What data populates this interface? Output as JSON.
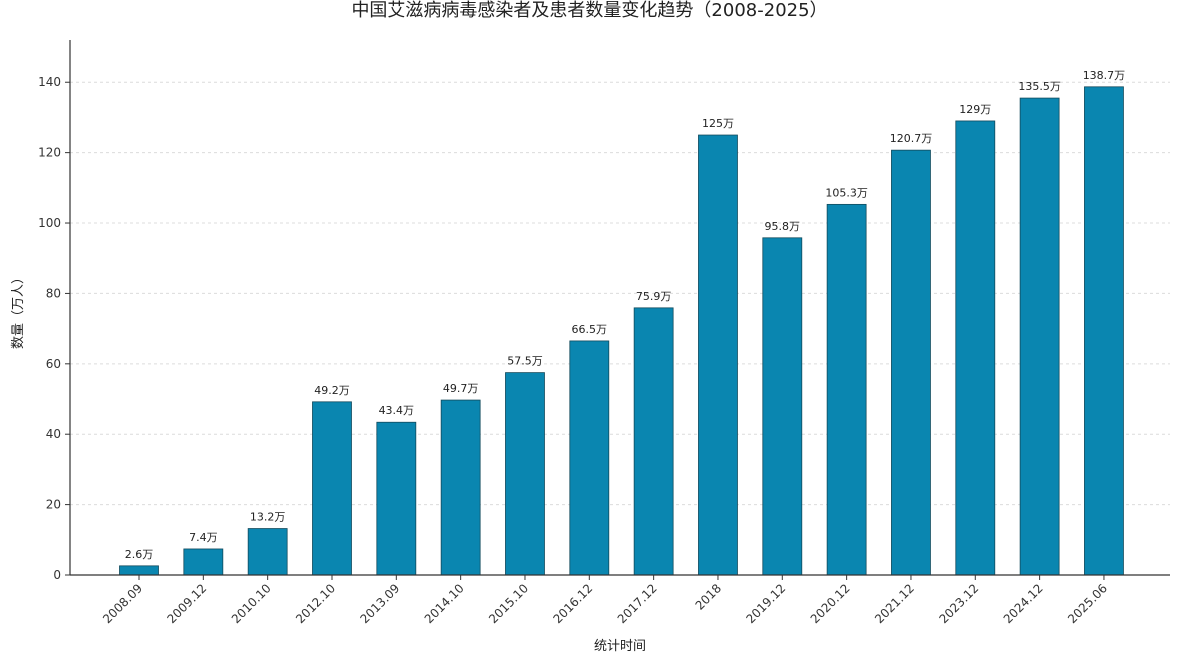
{
  "chart_data": {
    "type": "bar",
    "title": "中国艾滋病病毒感染者及患者数量变化趋势（2008-2025）",
    "xlabel": "统计时间",
    "ylabel": "数量（万人）",
    "categories": [
      "2008.09",
      "2009.12",
      "2010.10",
      "2012.10",
      "2013.09",
      "2014.10",
      "2015.10",
      "2016.12",
      "2017.12",
      "2018",
      "2019.12",
      "2020.12",
      "2021.12",
      "2023.12",
      "2024.12",
      "2025.06"
    ],
    "values": [
      2.6,
      7.4,
      13.2,
      49.2,
      43.4,
      49.7,
      57.5,
      66.5,
      75.9,
      125,
      95.8,
      105.3,
      120.7,
      129,
      135.5,
      138.7
    ],
    "data_labels": [
      "2.6万",
      "7.4万",
      "13.2万",
      "49.2万",
      "43.4万",
      "49.7万",
      "57.5万",
      "66.5万",
      "75.9万",
      "125万",
      "95.8万",
      "105.3万",
      "120.7万",
      "129万",
      "135.5万",
      "138.7万"
    ],
    "yticks": [
      0,
      20,
      40,
      60,
      80,
      100,
      120,
      140
    ],
    "ylim": [
      0,
      152
    ],
    "grid": true,
    "colors": {
      "bar": "#0a86b0",
      "bar_edge": "#124a5c",
      "axis": "#333333",
      "grid": "#dcdcdc"
    }
  }
}
